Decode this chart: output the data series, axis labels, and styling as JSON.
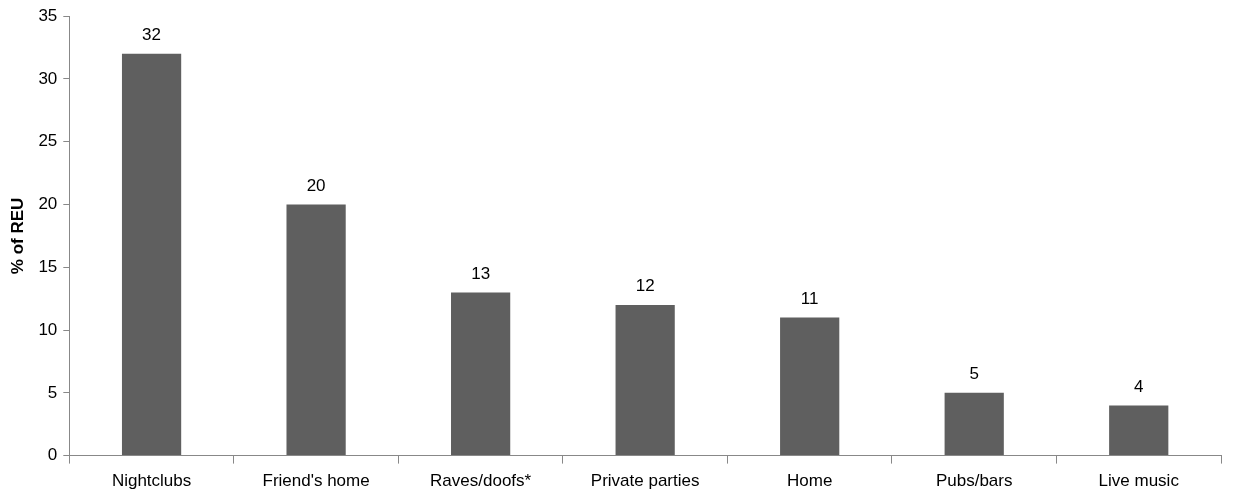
{
  "chart_data": {
    "type": "bar",
    "ylabel": "% of REU",
    "categories": [
      "Nightclubs",
      "Friend's home",
      "Raves/doofs*",
      "Private parties",
      "Home",
      "Pubs/bars",
      "Live music"
    ],
    "values": [
      32,
      20,
      13,
      12,
      11,
      5,
      4
    ],
    "color": "#5f5f5f",
    "ylim": [
      0,
      35
    ],
    "yticks": [
      0,
      5,
      10,
      15,
      20,
      25,
      30,
      35
    ],
    "grid": false,
    "legend": false,
    "data_labels": true
  }
}
